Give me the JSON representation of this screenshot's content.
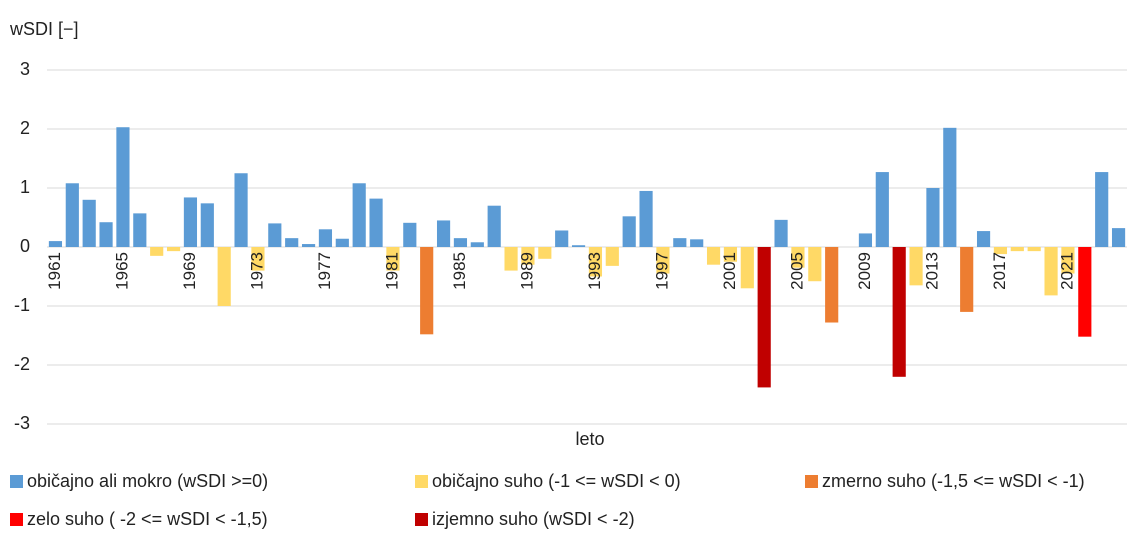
{
  "chart_data": {
    "type": "bar",
    "title": "wSDI [−]",
    "xlabel": "leto",
    "categories": [
      "1961",
      null,
      null,
      null,
      "1965",
      null,
      null,
      null,
      "1969",
      null,
      null,
      null,
      "1973",
      null,
      null,
      null,
      "1977",
      null,
      null,
      null,
      "1981",
      null,
      null,
      null,
      "1985",
      null,
      null,
      null,
      "1989",
      null,
      null,
      null,
      "1993",
      null,
      null,
      null,
      "1997",
      null,
      null,
      null,
      "2001",
      null,
      null,
      null,
      "2005",
      null,
      null,
      null,
      "2009",
      null,
      null,
      null,
      "2013",
      null,
      null,
      null,
      "2017",
      null,
      null,
      null,
      "2021",
      null,
      null,
      null
    ],
    "series": [
      {
        "name": "običajno ali mokro (wSDI >=0)",
        "color": "#5b9bd5",
        "values": [
          0.1,
          1.08,
          0.8,
          0.42,
          2.03,
          0.57,
          null,
          null,
          0.84,
          0.74,
          null,
          1.25,
          null,
          0.4,
          0.15,
          0.05,
          0.3,
          0.14,
          1.08,
          0.82,
          null,
          0.41,
          null,
          0.45,
          0.15,
          0.08,
          0.7,
          null,
          null,
          null,
          0.28,
          0.03,
          null,
          null,
          0.52,
          0.95,
          null,
          0.15,
          0.13,
          null,
          null,
          null,
          null,
          0.46,
          null,
          null,
          null,
          0,
          0.23,
          1.27,
          null,
          null,
          1.0,
          2.02,
          null,
          0.27,
          null,
          null,
          null,
          null,
          null,
          null,
          1.27,
          0.32
        ]
      },
      {
        "name": "običajno suho (-1 <= wSDI < 0)",
        "color": "#ffd966",
        "values": [
          null,
          null,
          null,
          null,
          null,
          null,
          -0.15,
          -0.07,
          null,
          null,
          -1.0,
          null,
          -0.4,
          null,
          null,
          null,
          null,
          null,
          null,
          null,
          -0.4,
          null,
          null,
          null,
          null,
          null,
          null,
          -0.4,
          -0.3,
          -0.2,
          null,
          null,
          -0.5,
          -0.32,
          null,
          null,
          -0.45,
          null,
          null,
          -0.3,
          -0.25,
          -0.7,
          null,
          null,
          -0.35,
          -0.58,
          null,
          null,
          null,
          null,
          null,
          -0.65,
          null,
          null,
          null,
          null,
          -0.12,
          -0.07,
          -0.07,
          -0.82,
          -0.45,
          null,
          null,
          null
        ]
      },
      {
        "name": "zmerno suho (-1,5 <= wSDI < -1)",
        "color": "#ed7d31",
        "values": [
          null,
          null,
          null,
          null,
          null,
          null,
          null,
          null,
          null,
          null,
          null,
          null,
          null,
          null,
          null,
          null,
          null,
          null,
          null,
          null,
          null,
          null,
          -1.48,
          null,
          null,
          null,
          null,
          null,
          null,
          null,
          null,
          null,
          null,
          null,
          null,
          null,
          null,
          null,
          null,
          null,
          null,
          null,
          null,
          null,
          null,
          null,
          -1.28,
          null,
          null,
          null,
          null,
          null,
          null,
          null,
          -1.1,
          null,
          null,
          null,
          null,
          null,
          null,
          null,
          null,
          null
        ]
      },
      {
        "name": "zelo suho ( -2 <= wSDI < -1,5)",
        "color": "#ff0000",
        "values": [
          null,
          null,
          null,
          null,
          null,
          null,
          null,
          null,
          null,
          null,
          null,
          null,
          null,
          null,
          null,
          null,
          null,
          null,
          null,
          null,
          null,
          null,
          null,
          null,
          null,
          null,
          null,
          null,
          null,
          null,
          null,
          null,
          null,
          null,
          null,
          null,
          null,
          null,
          null,
          null,
          null,
          null,
          null,
          null,
          null,
          null,
          null,
          null,
          null,
          null,
          null,
          null,
          null,
          null,
          null,
          null,
          null,
          null,
          null,
          null,
          null,
          -1.52,
          null,
          null
        ]
      },
      {
        "name": "izjemno suho (wSDI < -2)",
        "color": "#c00000",
        "values": [
          null,
          null,
          null,
          null,
          null,
          null,
          null,
          null,
          null,
          null,
          null,
          null,
          null,
          null,
          null,
          null,
          null,
          null,
          null,
          null,
          null,
          null,
          null,
          null,
          null,
          null,
          null,
          null,
          null,
          null,
          null,
          null,
          null,
          null,
          null,
          null,
          null,
          null,
          null,
          null,
          null,
          null,
          -2.38,
          null,
          null,
          null,
          null,
          null,
          null,
          null,
          -2.2,
          null,
          null,
          null,
          null,
          null,
          null,
          null,
          null,
          null,
          null,
          null,
          null,
          null
        ]
      }
    ],
    "ylim": [
      -3,
      3
    ],
    "yticks": [
      -3,
      -2,
      -1,
      0,
      1,
      2,
      3
    ],
    "grid": true,
    "legend": "bottom"
  }
}
